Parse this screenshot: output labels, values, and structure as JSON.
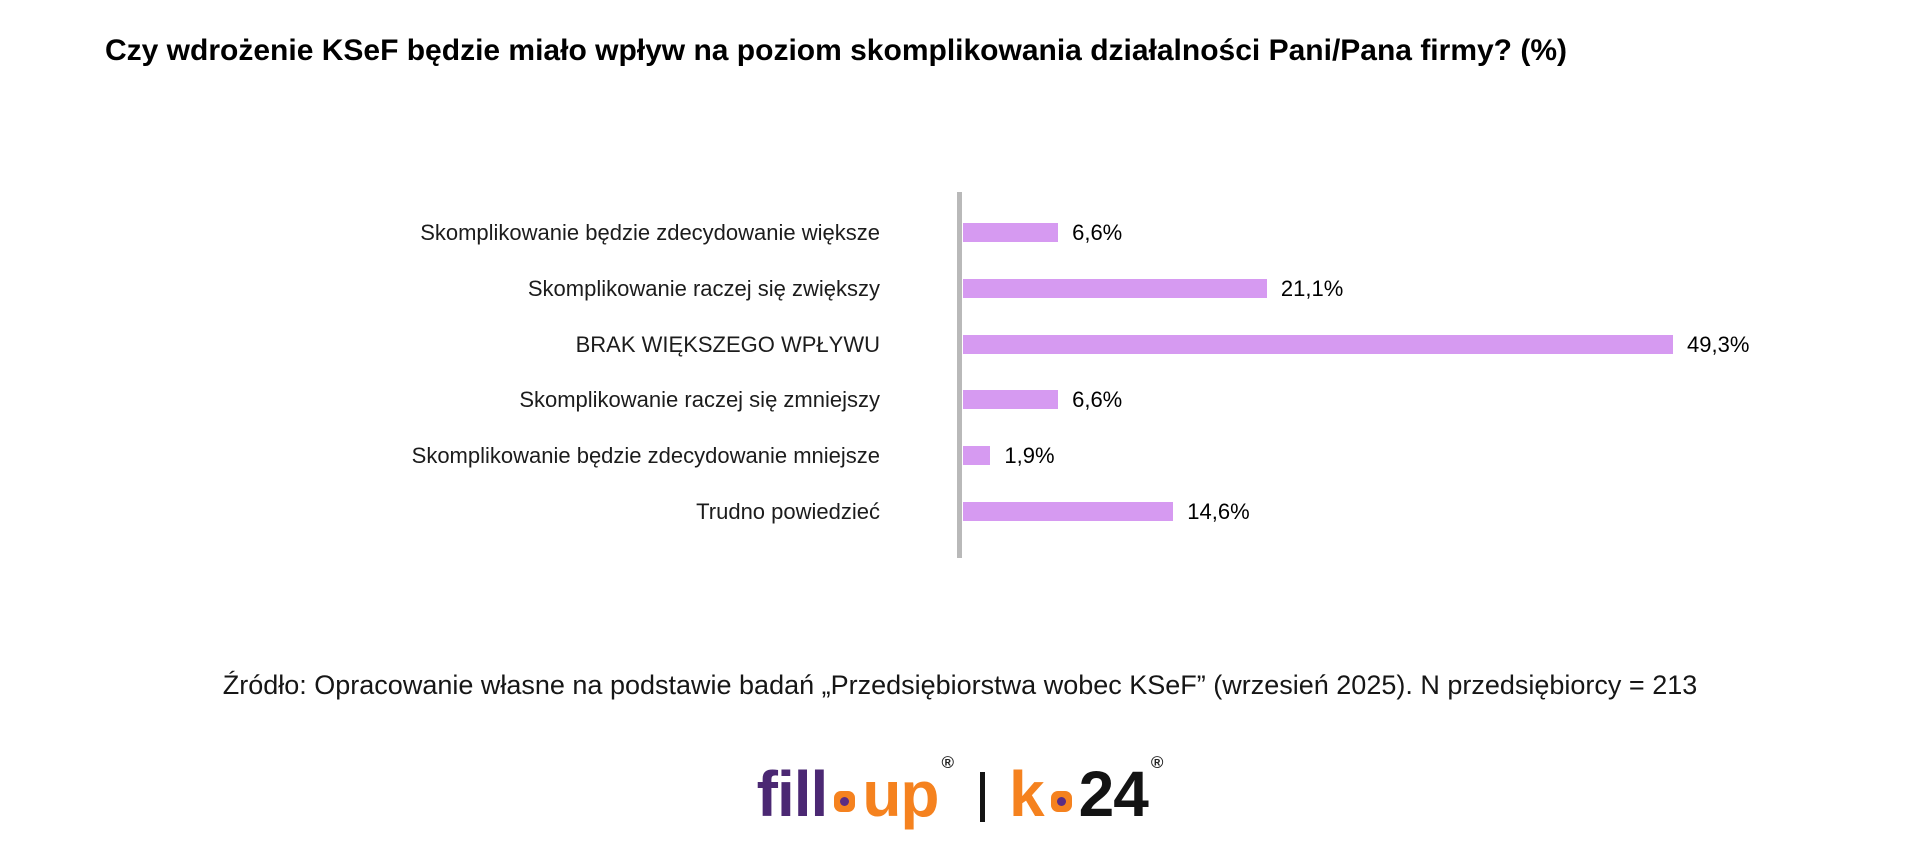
{
  "title": "Czy wdrożenie KSeF będzie miało wpływ na poziom skomplikowania działalności Pani/Pana firmy? (%)",
  "chart_data": {
    "type": "bar",
    "orientation": "horizontal",
    "title": "Czy wdrożenie KSeF będzie miało wpływ na poziom skomplikowania działalności Pani/Pana firmy? (%)",
    "categories": [
      "Skomplikowanie będzie zdecydowanie większe",
      "Skomplikowanie raczej się zwiększy",
      "BRAK WIĘKSZEGO WPŁYWU",
      "Skomplikowanie raczej się zmniejszy",
      "Skomplikowanie będzie zdecydowanie mniejsze",
      "Trudno powiedzieć"
    ],
    "values": [
      6.6,
      21.1,
      49.3,
      6.6,
      1.9,
      14.6
    ],
    "value_labels": [
      "6,6%",
      "21,1%",
      "49,3%",
      "6,6%",
      "1,9%",
      "14,6%"
    ],
    "unit": "%",
    "xlim": [
      0,
      50
    ],
    "grid": false,
    "legend": false,
    "bar_color": "#d69af1",
    "axis_line_color": "#b9b9b9"
  },
  "source_note": "Źródło: Opracowanie własne na podstawie badań „Przedsiębiorstwa wobec KSeF” (wrzesień 2025). N przedsiębiorcy = 213",
  "logo": {
    "brand_left": "fill",
    "brand_left_suffix": "up",
    "brand_right_prefix": "k",
    "brand_right_suffix": "24",
    "registered_symbol": "®",
    "separator": "|",
    "colors": {
      "purple": "#4b2873",
      "orange": "#f5821f",
      "black": "#131313"
    }
  }
}
